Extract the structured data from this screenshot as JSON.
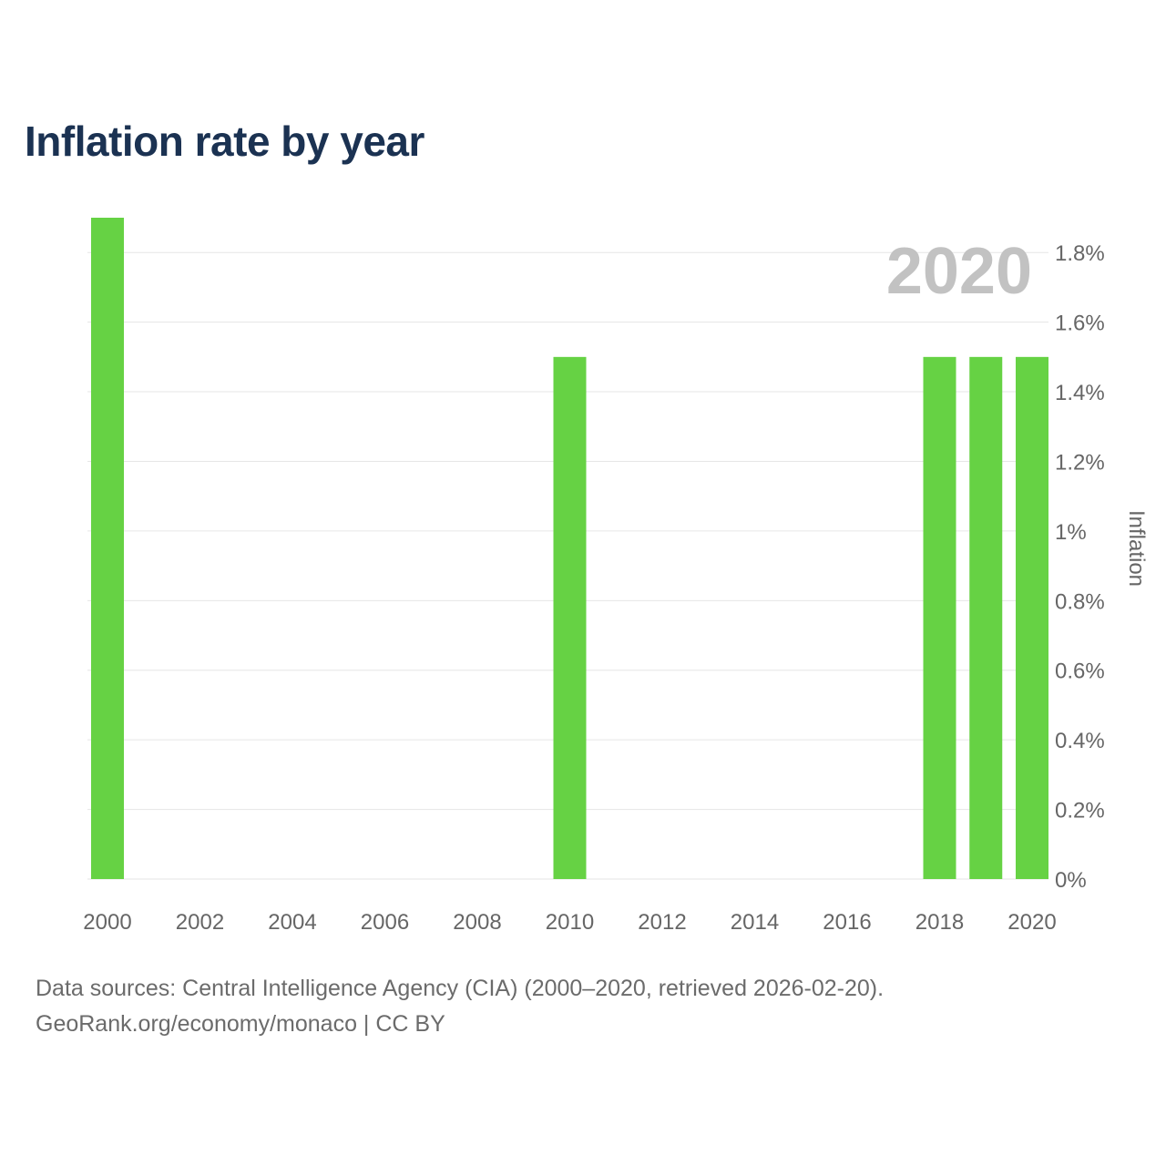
{
  "title": "Inflation rate by year",
  "chart_data": {
    "type": "bar",
    "title": "Inflation rate by year",
    "categories": [
      2000,
      2010,
      2018,
      2019,
      2020
    ],
    "values": [
      1.9,
      1.5,
      1.5,
      1.5,
      1.5
    ],
    "x_range": [
      2000,
      2020
    ],
    "x_ticks": [
      2000,
      2002,
      2004,
      2006,
      2008,
      2010,
      2012,
      2014,
      2016,
      2018,
      2020
    ],
    "x_tick_labels": [
      "2000",
      "2002",
      "2004",
      "2006",
      "2008",
      "2010",
      "2012",
      "2014",
      "2016",
      "2018",
      "2020"
    ],
    "ylim": [
      0,
      1.9
    ],
    "y_ticks": [
      0,
      0.2,
      0.4,
      0.6,
      0.8,
      1,
      1.2,
      1.4,
      1.6,
      1.8
    ],
    "y_tick_labels": [
      "0%",
      "0.2%",
      "0.4%",
      "0.6%",
      "0.8%",
      "1%",
      "1.2%",
      "1.4%",
      "1.6%",
      "1.8%"
    ],
    "ylabel": "Inflation",
    "xlabel": "",
    "y_axis_side": "right",
    "grid": true,
    "year_watermark": "2020",
    "bar_color": "#66d244"
  },
  "footer": {
    "source_line": "Data sources: Central Intelligence Agency (CIA) (2000–2020, retrieved 2026-02-20).",
    "site_line": "GeoRank.org/economy/monaco | CC BY"
  }
}
